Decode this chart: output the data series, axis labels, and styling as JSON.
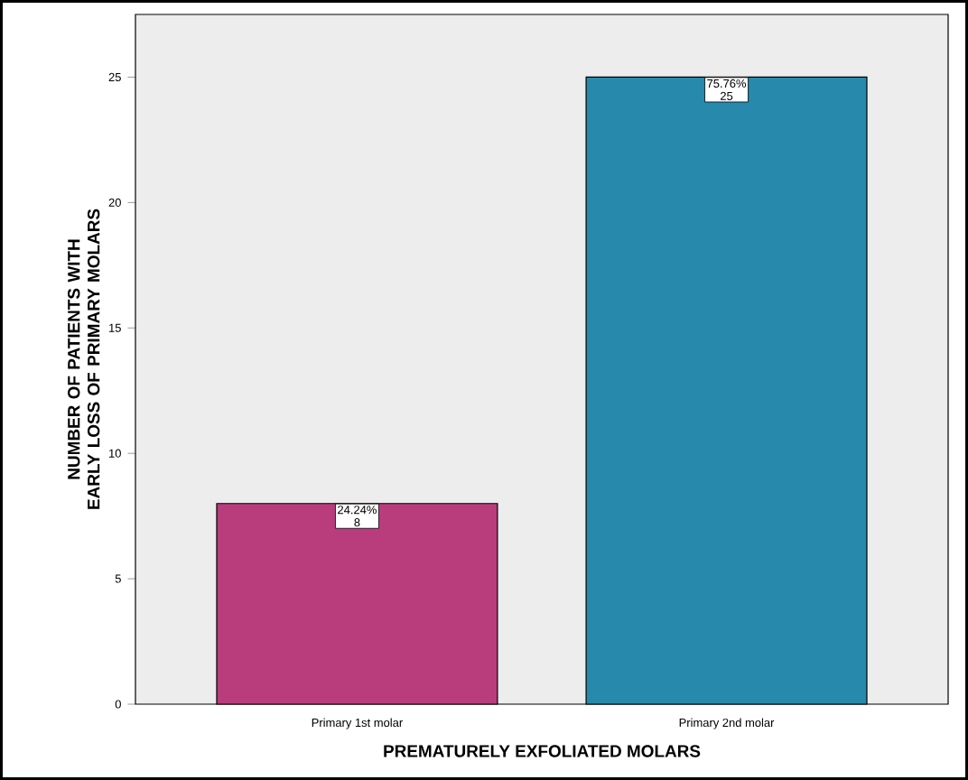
{
  "chart_data": {
    "type": "bar",
    "xlabel": "PREMATURELY EXFOLIATED MOLARS",
    "ylabel": "NUMBER OF PATIENTS WITH EARLY LOSS OF PRIMARY MOLARS",
    "categories": [
      "Primary 1st molar",
      "Primary 2nd molar"
    ],
    "values": [
      8,
      25
    ],
    "colors": [
      "#b93d7c",
      "#2789ab"
    ],
    "value_labels": [
      "24.24% 8",
      "75.76% 25"
    ],
    "ylim": [
      0,
      27.5
    ],
    "yticks": [
      0,
      5,
      10,
      15,
      20,
      25
    ],
    "grid": false
  }
}
